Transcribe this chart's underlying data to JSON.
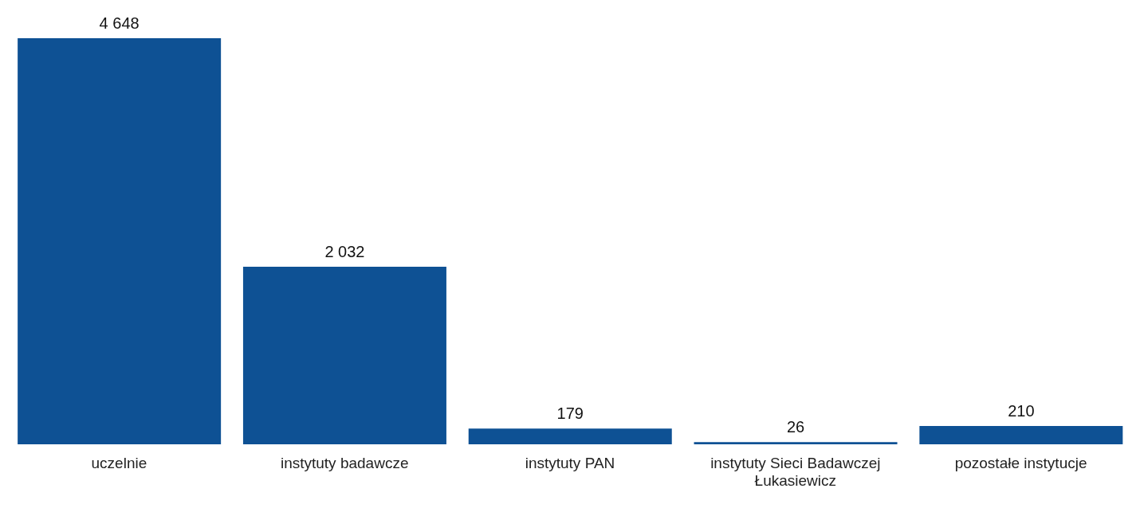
{
  "chart_data": {
    "type": "bar",
    "categories": [
      "uczelnie",
      "instytuty badawcze",
      "instytuty PAN",
      "instytuty Sieci Badawczej Łukasiewicz",
      "pozostałe instytucje"
    ],
    "values": [
      4648,
      2032,
      179,
      26,
      210
    ],
    "value_labels": [
      "4 648",
      "2 032",
      "179",
      "26",
      "210"
    ],
    "color": "#0e5194",
    "grid": false,
    "legend": false
  }
}
